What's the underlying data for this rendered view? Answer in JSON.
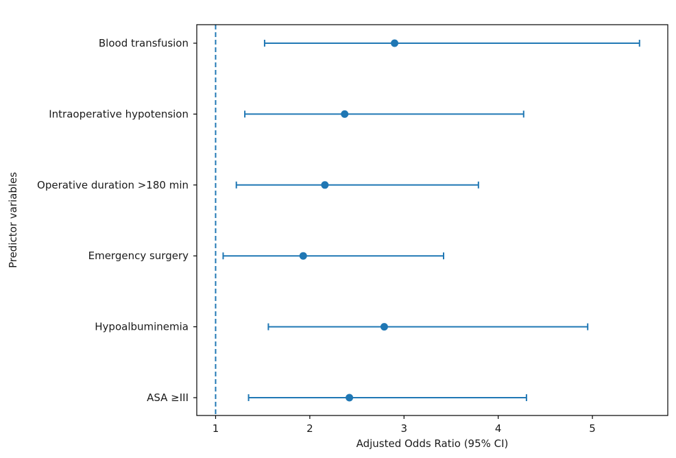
{
  "chart_data": {
    "type": "forest",
    "title": "",
    "xlabel": "Adjusted Odds Ratio (95% CI)",
    "ylabel": "Predictor variables",
    "xlim": [
      0.8,
      5.8
    ],
    "xticks": [
      1,
      2,
      3,
      4,
      5
    ],
    "reference_line": 1,
    "categories": [
      "Blood transfusion",
      "Intraoperative hypotension",
      "Operative duration >180 min",
      "Emergency surgery",
      "Hypoalbuminemia",
      "ASA ≥III"
    ],
    "series": [
      {
        "points": [
          {
            "category": "Blood transfusion",
            "or": 2.9,
            "lower": 1.52,
            "upper": 5.5
          },
          {
            "category": "Intraoperative hypotension",
            "or": 2.37,
            "lower": 1.31,
            "upper": 4.27
          },
          {
            "category": "Operative duration >180 min",
            "or": 2.16,
            "lower": 1.22,
            "upper": 3.79
          },
          {
            "category": "Emergency surgery",
            "or": 1.93,
            "lower": 1.08,
            "upper": 3.42
          },
          {
            "category": "Hypoalbuminemia",
            "or": 2.79,
            "lower": 1.56,
            "upper": 4.95
          },
          {
            "category": "ASA ≥III",
            "or": 2.42,
            "lower": 1.35,
            "upper": 4.3
          }
        ]
      }
    ],
    "grid": false,
    "colors": {
      "series": "#1f77b4",
      "axes": "#000000",
      "reference": "#1f77b4"
    }
  }
}
